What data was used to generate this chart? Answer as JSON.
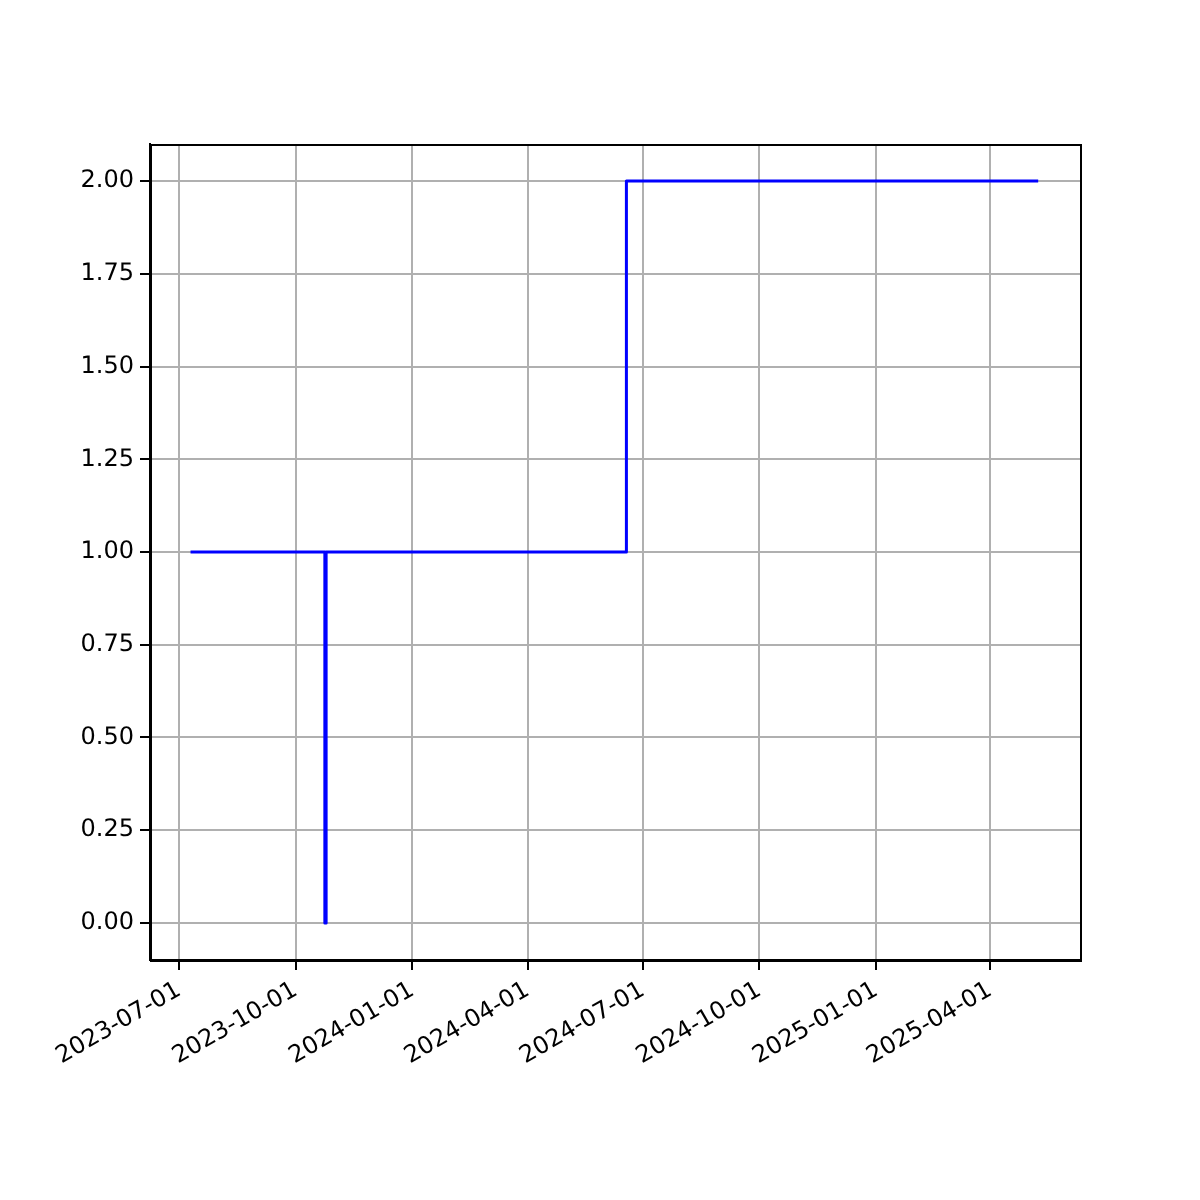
{
  "chart_data": {
    "type": "step",
    "x": [
      "2023-07-10",
      "2023-10-24",
      "2023-10-25",
      "2024-06-18",
      "2025-05-09"
    ],
    "series": [
      {
        "color": "#0000ff",
        "values": [
          1,
          0,
          1,
          2,
          2
        ]
      }
    ],
    "xlim": [
      "2023-06-08",
      "2025-06-11"
    ],
    "xticks": [
      "2023-07-01",
      "2023-10-01",
      "2024-01-01",
      "2024-04-01",
      "2024-07-01",
      "2024-10-01",
      "2025-01-01",
      "2025-04-01"
    ],
    "ylim": [
      -0.1,
      2.1
    ],
    "yticks": [
      {
        "value": 0,
        "label": "0.00"
      },
      {
        "value": 0.25,
        "label": "0.25"
      },
      {
        "value": 0.5,
        "label": "0.50"
      },
      {
        "value": 0.75,
        "label": "0.75"
      },
      {
        "value": 1,
        "label": "1.00"
      },
      {
        "value": 1.25,
        "label": "1.25"
      },
      {
        "value": 1.5,
        "label": "1.50"
      },
      {
        "value": 1.75,
        "label": "1.75"
      },
      {
        "value": 2,
        "label": "2.00"
      }
    ],
    "grid": true,
    "legend": false
  }
}
